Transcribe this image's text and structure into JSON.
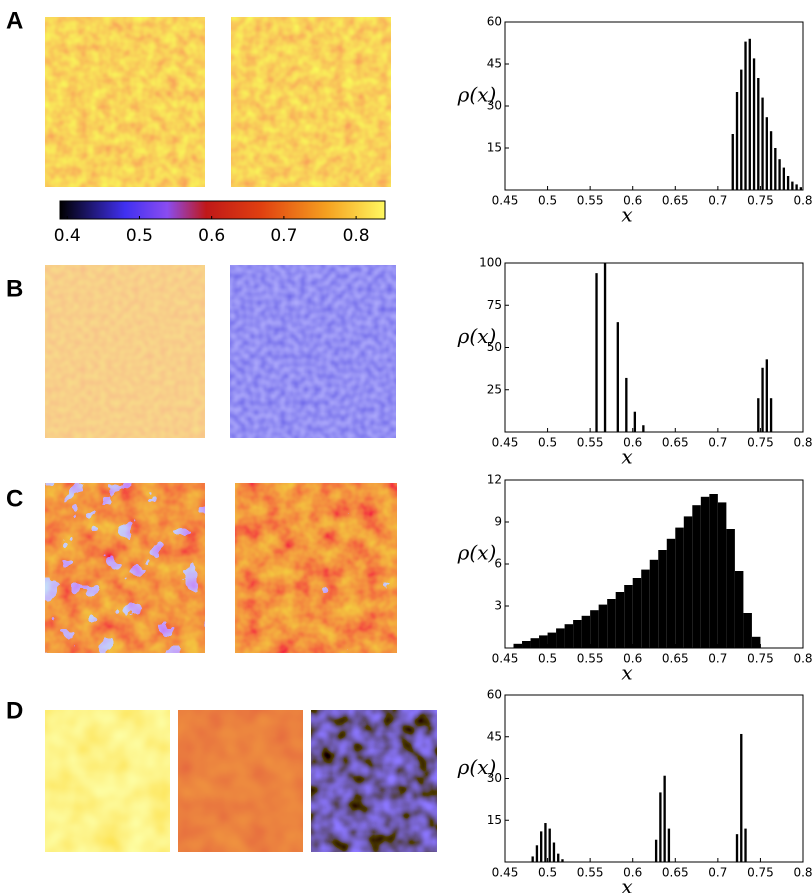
{
  "colorbar": {
    "lim": [
      0.39,
      0.84
    ],
    "ticks": [
      0.4,
      0.5,
      0.6,
      0.7,
      0.8
    ]
  },
  "chart_data": [
    {
      "type": "histogram",
      "panel": "A",
      "xlabel": "x",
      "ylabel": "ρ(x)",
      "bins": [
        0.715,
        0.72,
        0.725,
        0.73,
        0.735,
        0.74,
        0.745,
        0.75,
        0.755,
        0.76,
        0.765,
        0.77,
        0.775,
        0.78,
        0.785,
        0.79,
        0.795,
        0.8
      ],
      "counts": [
        20,
        35,
        43,
        53,
        54,
        47,
        40,
        33,
        26,
        21,
        15,
        11,
        8,
        5,
        3,
        2,
        1
      ],
      "color": "#000000",
      "xlim": [
        0.45,
        0.8
      ],
      "xticks": [
        0.45,
        0.5,
        0.55,
        0.6,
        0.65,
        0.7,
        0.75,
        0.8
      ],
      "ylim": [
        0,
        60
      ],
      "yticks": [
        15,
        30,
        45,
        60
      ]
    },
    {
      "type": "histogram",
      "panel": "B",
      "xlabel": "x",
      "ylabel": "ρ(x)",
      "bins": [
        0.555,
        0.56,
        0.565,
        0.57,
        0.575,
        0.58,
        0.585,
        0.59,
        0.595,
        0.6,
        0.605,
        0.61,
        0.615,
        0.745,
        0.75,
        0.755,
        0.76,
        0.765
      ],
      "counts": [
        94,
        0,
        100,
        0,
        0,
        65,
        0,
        32,
        0,
        12,
        0,
        4,
        0,
        20,
        38,
        43,
        20
      ],
      "color": "#000000",
      "xlim": [
        0.45,
        0.8
      ],
      "xticks": [
        0.45,
        0.5,
        0.55,
        0.6,
        0.65,
        0.7,
        0.75,
        0.8
      ],
      "ylim": [
        0,
        100
      ],
      "yticks": [
        25,
        50,
        75,
        100
      ]
    },
    {
      "type": "histogram",
      "panel": "C",
      "xlabel": "x",
      "ylabel": "ρ(x)",
      "bins": [
        0.46,
        0.47,
        0.48,
        0.49,
        0.5,
        0.51,
        0.52,
        0.53,
        0.54,
        0.55,
        0.56,
        0.57,
        0.58,
        0.59,
        0.6,
        0.61,
        0.62,
        0.63,
        0.64,
        0.65,
        0.66,
        0.67,
        0.68,
        0.69,
        0.7,
        0.71,
        0.72,
        0.73,
        0.74,
        0.75
      ],
      "counts": [
        0.3,
        0.5,
        0.7,
        0.9,
        1.1,
        1.4,
        1.7,
        2.0,
        2.3,
        2.7,
        3.1,
        3.5,
        4.0,
        4.5,
        5.0,
        5.6,
        6.3,
        7.0,
        7.8,
        8.6,
        9.4,
        10.2,
        10.8,
        11,
        10.4,
        8.5,
        5.5,
        2.5,
        0.8
      ],
      "color": "#000000",
      "xlim": [
        0.45,
        0.8
      ],
      "xticks": [
        0.45,
        0.5,
        0.55,
        0.6,
        0.65,
        0.7,
        0.75,
        0.8
      ],
      "ylim": [
        0,
        12
      ],
      "yticks": [
        3,
        6,
        9,
        12
      ]
    },
    {
      "type": "histogram",
      "panel": "D",
      "xlabel": "x",
      "ylabel": "ρ(x)",
      "bins": [
        0.48,
        0.485,
        0.49,
        0.495,
        0.5,
        0.505,
        0.51,
        0.515,
        0.52,
        0.625,
        0.63,
        0.635,
        0.64,
        0.645,
        0.72,
        0.725,
        0.73,
        0.735
      ],
      "counts": [
        2,
        6,
        11,
        14,
        12,
        7,
        3,
        1,
        0,
        8,
        25,
        31,
        12,
        0,
        10,
        46,
        12
      ],
      "color": "#000000",
      "xlim": [
        0.45,
        0.8
      ],
      "xticks": [
        0.45,
        0.5,
        0.55,
        0.6,
        0.65,
        0.7,
        0.75,
        0.8
      ],
      "ylim": [
        0,
        60
      ],
      "yticks": [
        15,
        30,
        45,
        60
      ]
    }
  ]
}
